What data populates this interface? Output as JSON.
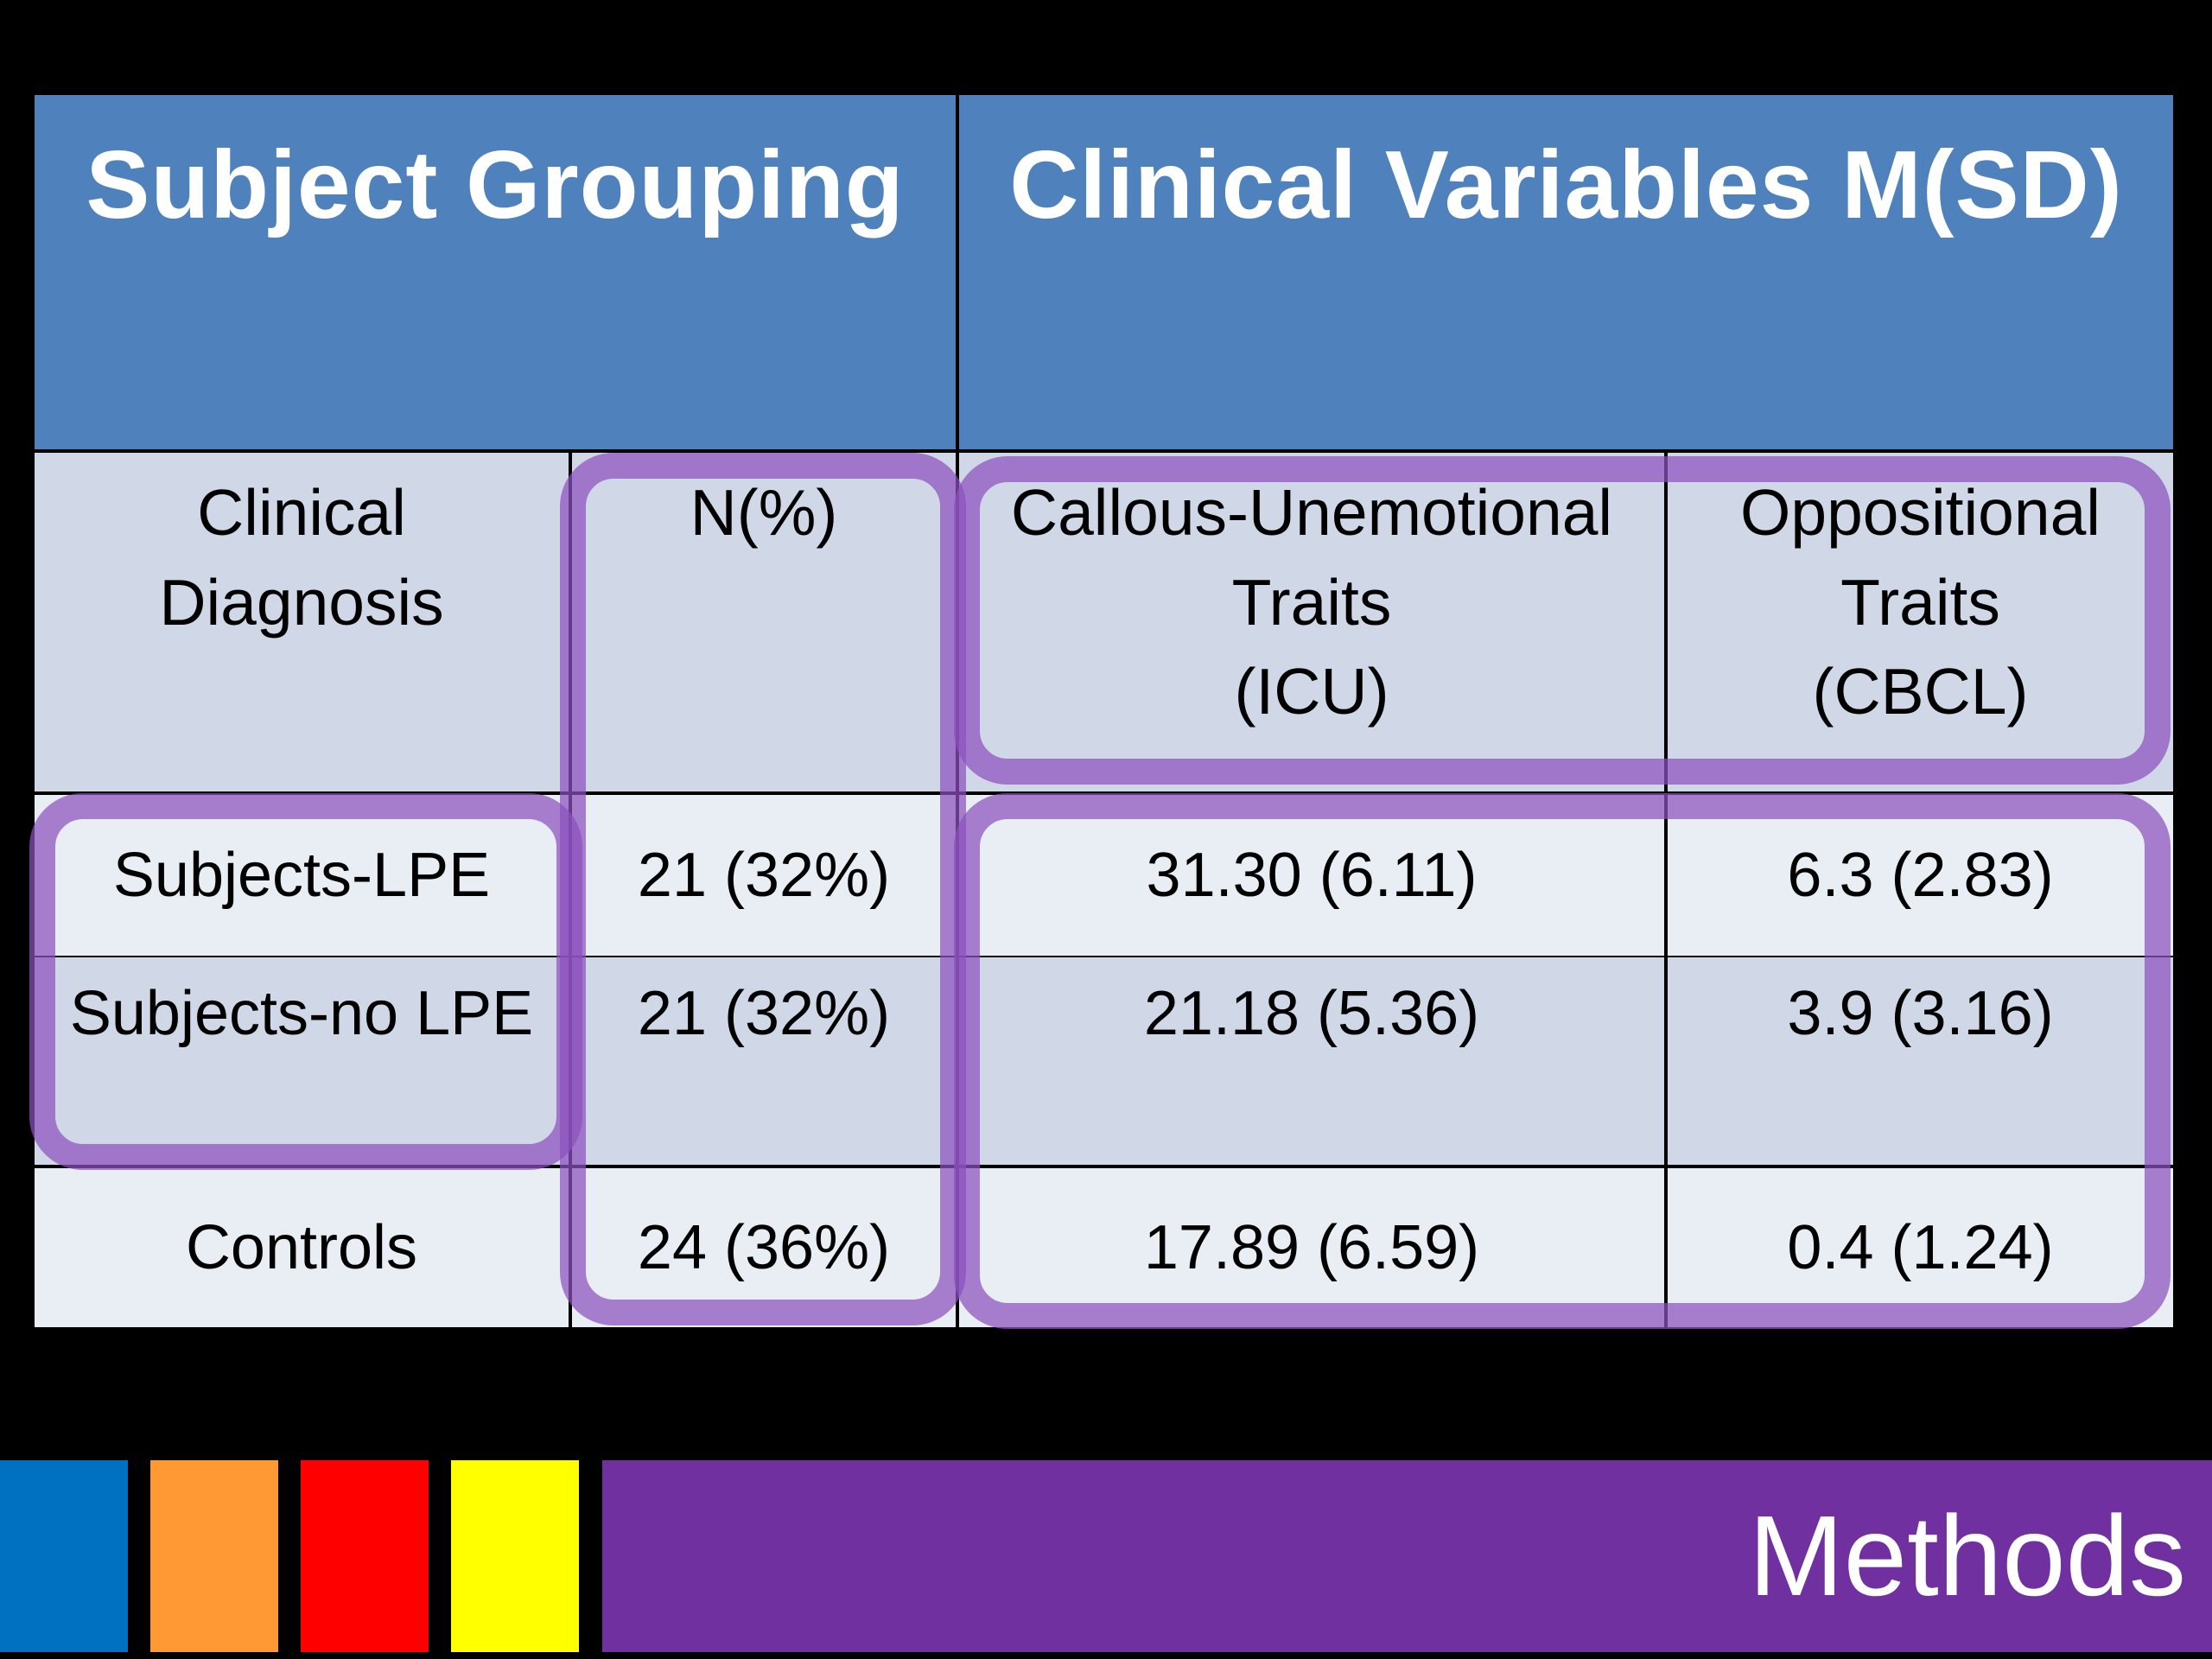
{
  "table": {
    "header": {
      "left": "Subject Grouping",
      "right": "Clinical Variables M(SD)"
    },
    "subheader": {
      "diagnosis": [
        "Clinical",
        "Diagnosis"
      ],
      "n": "N(%)",
      "icu": [
        "Callous-Unemotional",
        "Traits",
        "(ICU)"
      ],
      "cbcl": [
        "Oppositional",
        "Traits",
        "(CBCL)"
      ]
    },
    "rows": [
      {
        "group": "Subjects-LPE",
        "n": "21 (32%)",
        "icu": "31.30 (6.11)",
        "cbcl": "6.3 (2.83)"
      },
      {
        "group": "Subjects-no LPE",
        "n": "21 (32%)",
        "icu": "21.18 (5.36)",
        "cbcl": "3.9 (3.16)"
      },
      {
        "group": "Controls",
        "n": "24 (36%)",
        "icu": "17.89 (6.59)",
        "cbcl": "0.4 (1.24)"
      }
    ]
  },
  "footer": {
    "section_title": "Methods",
    "colors": {
      "blue": "#0070c0",
      "orange": "#ff9933",
      "red": "#ff0000",
      "yellow": "#ffff00",
      "purple": "#7030a0",
      "highlight": "#8c50be",
      "header_blue": "#4f81bd"
    }
  }
}
